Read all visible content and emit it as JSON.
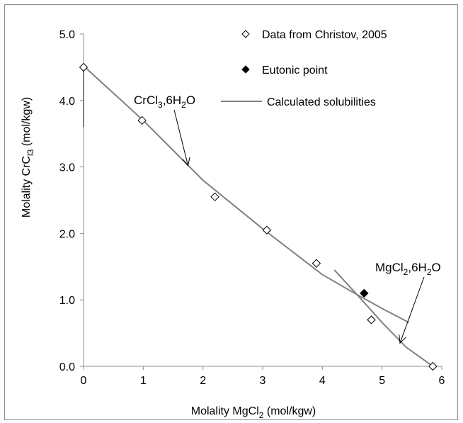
{
  "chart_data": {
    "type": "scatter",
    "xlabel_main": "Molality MgCl",
    "xlabel_sub": "2",
    "xlabel_rest": " (mol/kgw)",
    "ylabel_main": "Molality CrC",
    "ylabel_sub": "l3",
    "ylabel_rest": " (mol/kgw)",
    "xlim": [
      0,
      6
    ],
    "ylim": [
      0.0,
      5.0
    ],
    "x_ticks": [
      "0",
      "1",
      "2",
      "3",
      "4",
      "5",
      "6"
    ],
    "y_ticks": [
      "0.0",
      "1.0",
      "2.0",
      "3.0",
      "4.0",
      "5.0"
    ],
    "legend_position": "top-right",
    "series": [
      {
        "name": "Data from Christov, 2005",
        "marker": "open-diamond",
        "points": [
          [
            0.0,
            4.5
          ],
          [
            0.98,
            3.7
          ],
          [
            2.2,
            2.55
          ],
          [
            3.07,
            2.05
          ],
          [
            3.9,
            1.55
          ],
          [
            4.82,
            0.7
          ],
          [
            5.85,
            0.0
          ]
        ]
      },
      {
        "name": "Eutonic point",
        "marker": "filled-diamond",
        "points": [
          [
            4.7,
            1.1
          ]
        ]
      },
      {
        "name": "Calculated solubilities",
        "marker": "line",
        "color": "#808080",
        "lines": [
          [
            [
              0.0,
              3.6
            ],
            [
              0.0,
              4.55
            ]
          ],
          [
            [
              0.0,
              4.52
            ],
            [
              1.0,
              3.7
            ],
            [
              2.0,
              2.8
            ],
            [
              3.0,
              2.07
            ],
            [
              4.0,
              1.38
            ],
            [
              4.5,
              1.12
            ],
            [
              5.0,
              0.87
            ],
            [
              5.45,
              0.66
            ]
          ],
          [
            [
              4.2,
              1.45
            ],
            [
              4.6,
              1.06
            ],
            [
              5.0,
              0.66
            ],
            [
              5.4,
              0.29
            ],
            [
              5.85,
              0.0
            ]
          ]
        ]
      }
    ],
    "annotations": [
      {
        "main": "CrCl",
        "sub1": "3",
        "mid": ",6H",
        "sub2": "2",
        "tail": "O",
        "arrow_to": [
          1.75,
          3.02
        ]
      },
      {
        "main": "MgCl",
        "sub1": "2",
        "mid": ",6H",
        "sub2": "2",
        "tail": "O",
        "arrow_to": [
          5.3,
          0.35
        ]
      }
    ]
  }
}
